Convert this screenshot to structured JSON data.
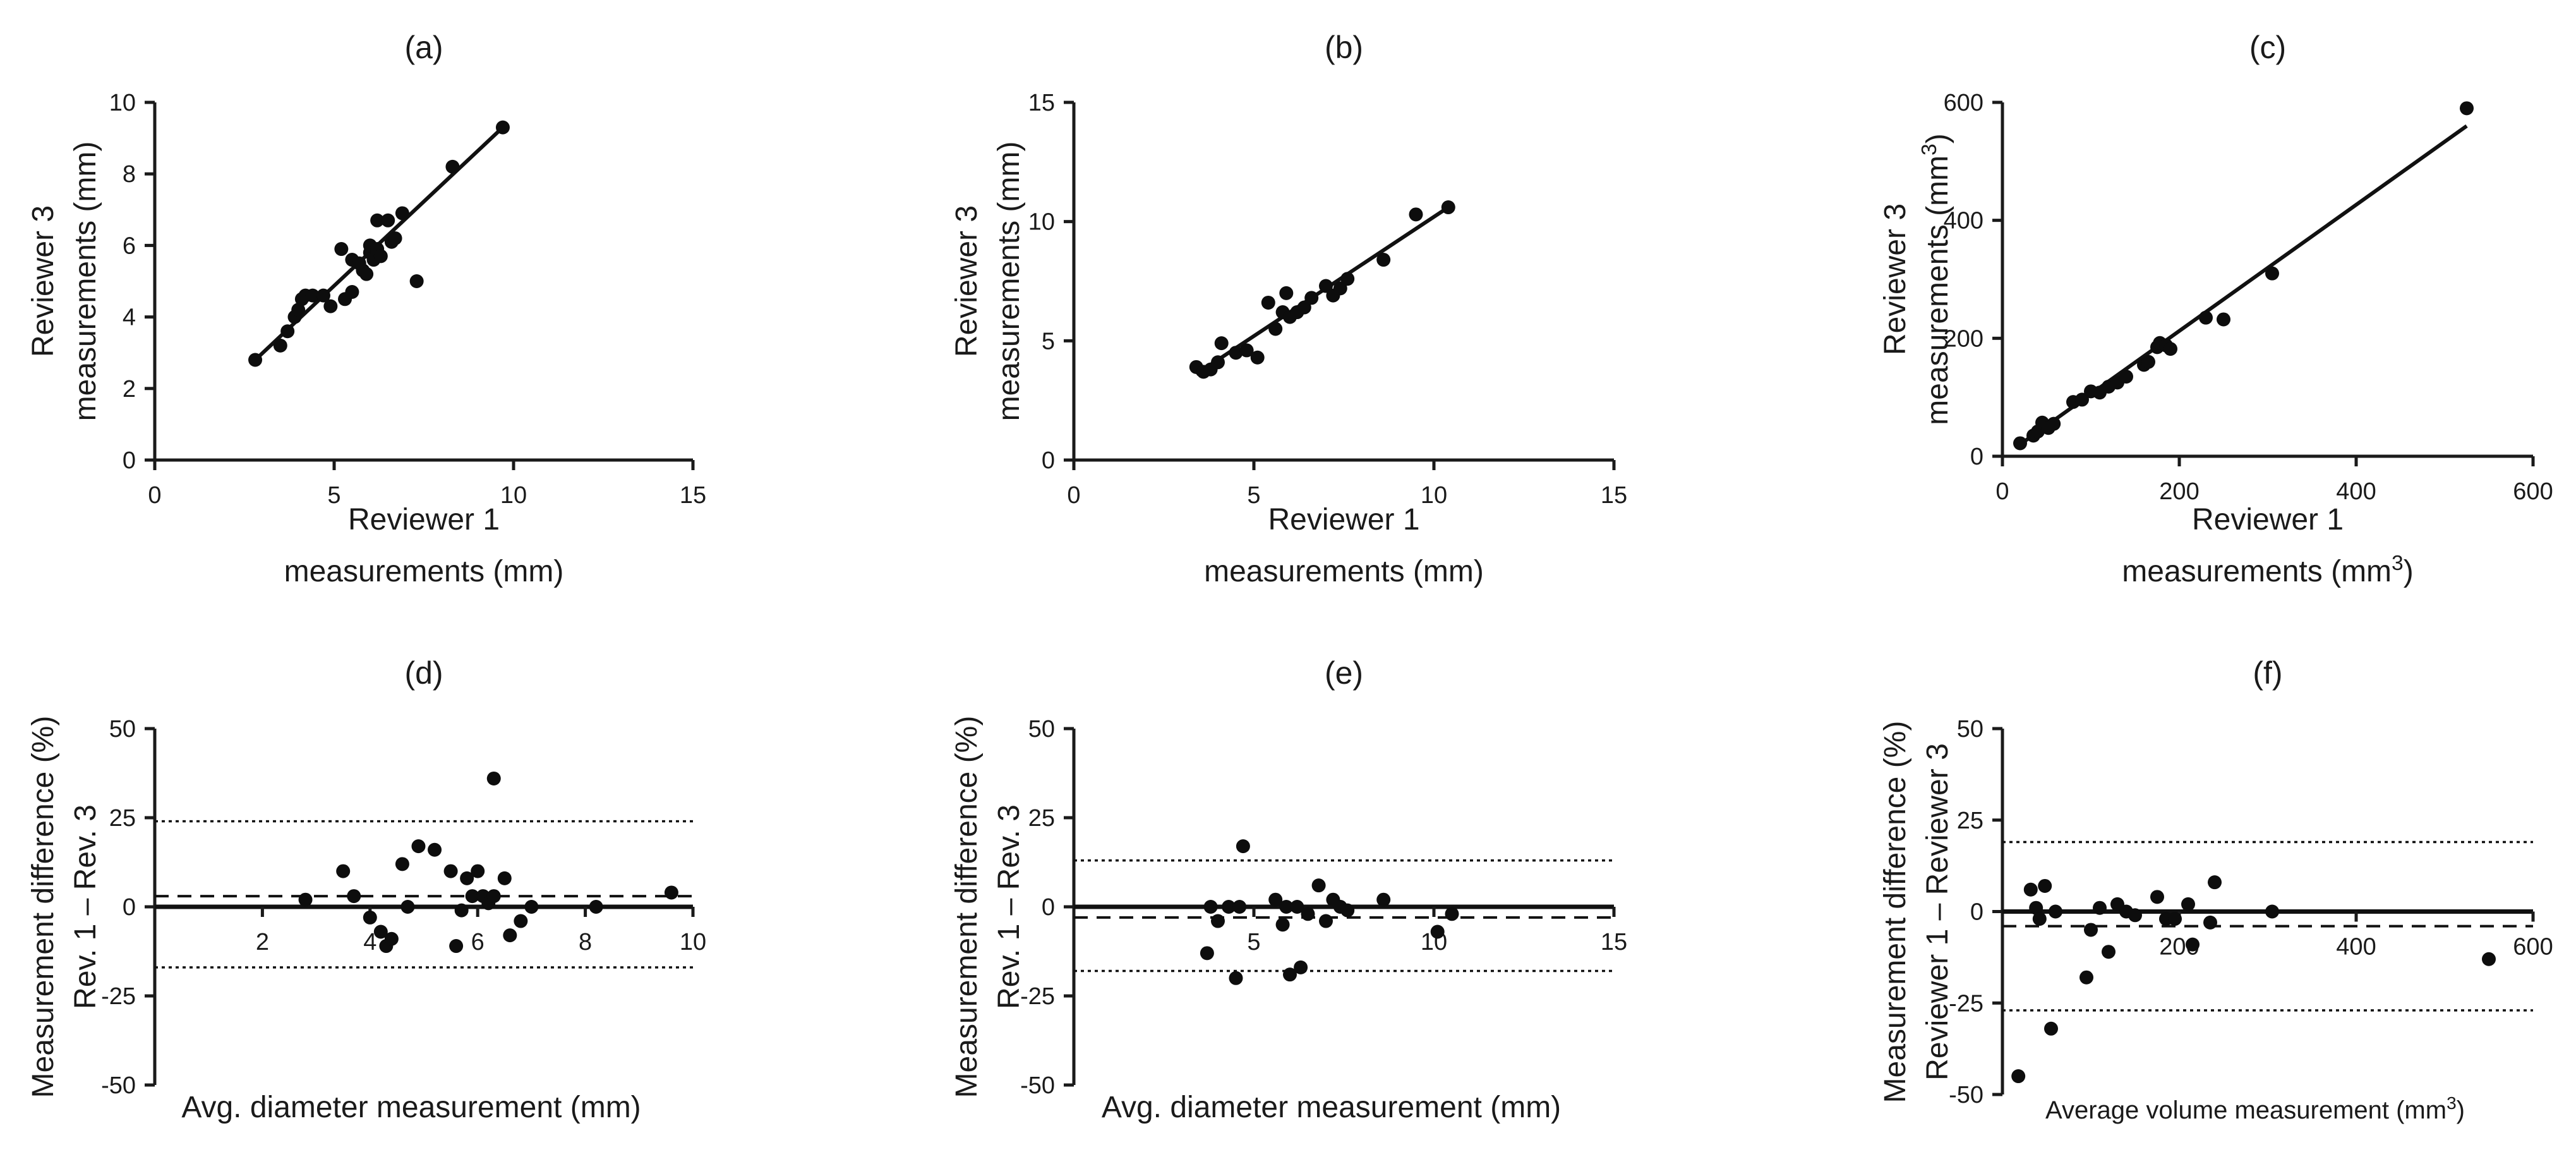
{
  "chart_data": [
    {
      "id": "a",
      "type": "scatter",
      "title": "(a)",
      "xlabel": [
        "Reviewer 1",
        "measurements (mm)"
      ],
      "ylabel": [
        "Reviewer 3",
        "measurements (mm)"
      ],
      "xlim": [
        0,
        15
      ],
      "ylim": [
        0,
        10
      ],
      "xticks": [
        0,
        5,
        10,
        15
      ],
      "yticks": [
        0,
        2,
        4,
        6,
        8,
        10
      ],
      "fit_line": [
        [
          2.8,
          2.8
        ],
        [
          9.7,
          9.3
        ]
      ],
      "points": [
        [
          2.8,
          2.8
        ],
        [
          3.5,
          3.2
        ],
        [
          3.7,
          3.6
        ],
        [
          3.9,
          4.0
        ],
        [
          4.0,
          4.2
        ],
        [
          4.1,
          4.5
        ],
        [
          4.2,
          4.6
        ],
        [
          4.4,
          4.6
        ],
        [
          4.7,
          4.6
        ],
        [
          4.9,
          4.3
        ],
        [
          5.2,
          5.9
        ],
        [
          5.3,
          4.5
        ],
        [
          5.5,
          4.7
        ],
        [
          5.5,
          5.6
        ],
        [
          5.7,
          5.5
        ],
        [
          5.8,
          5.3
        ],
        [
          5.9,
          5.2
        ],
        [
          6.0,
          5.8
        ],
        [
          6.0,
          6.0
        ],
        [
          6.1,
          5.6
        ],
        [
          6.2,
          5.9
        ],
        [
          6.2,
          6.7
        ],
        [
          6.3,
          5.7
        ],
        [
          6.5,
          6.7
        ],
        [
          6.6,
          6.1
        ],
        [
          6.7,
          6.2
        ],
        [
          6.9,
          6.9
        ],
        [
          7.3,
          5.0
        ],
        [
          8.3,
          8.2
        ],
        [
          9.7,
          9.3
        ]
      ]
    },
    {
      "id": "b",
      "type": "scatter",
      "title": "(b)",
      "xlabel": [
        "Reviewer 1",
        "measurements (mm)"
      ],
      "ylabel": [
        "Reviewer 3",
        "measurements (mm)"
      ],
      "xlim": [
        0,
        15
      ],
      "ylim": [
        0,
        15
      ],
      "xticks": [
        0,
        5,
        10,
        15
      ],
      "yticks": [
        0,
        5,
        10,
        15
      ],
      "fit_line": [
        [
          3.4,
          3.6
        ],
        [
          10.4,
          10.6
        ]
      ],
      "points": [
        [
          3.4,
          3.9
        ],
        [
          3.6,
          3.7
        ],
        [
          3.8,
          3.8
        ],
        [
          4.0,
          4.1
        ],
        [
          4.1,
          4.9
        ],
        [
          4.5,
          4.5
        ],
        [
          4.8,
          4.6
        ],
        [
          5.1,
          4.3
        ],
        [
          5.4,
          6.6
        ],
        [
          5.6,
          5.5
        ],
        [
          5.8,
          6.2
        ],
        [
          5.9,
          7.0
        ],
        [
          6.0,
          6.0
        ],
        [
          6.2,
          6.2
        ],
        [
          6.4,
          6.4
        ],
        [
          6.6,
          6.8
        ],
        [
          7.0,
          7.3
        ],
        [
          7.2,
          6.9
        ],
        [
          7.4,
          7.2
        ],
        [
          7.6,
          7.6
        ],
        [
          8.6,
          8.4
        ],
        [
          9.5,
          10.3
        ],
        [
          10.4,
          10.6
        ]
      ]
    },
    {
      "id": "c",
      "type": "scatter",
      "title": "(c)",
      "xlabel": [
        "Reviewer 1",
        "measurements (mm³)"
      ],
      "ylabel": [
        "Reviewer 3",
        "measurements (mm³)"
      ],
      "xlim": [
        0,
        600
      ],
      "ylim": [
        0,
        600
      ],
      "xticks": [
        0,
        200,
        400,
        600
      ],
      "yticks": [
        0,
        200,
        400,
        600
      ],
      "fit_line": [
        [
          20,
          20
        ],
        [
          525,
          560
        ]
      ],
      "points": [
        [
          20,
          22
        ],
        [
          35,
          35
        ],
        [
          40,
          42
        ],
        [
          45,
          57
        ],
        [
          52,
          48
        ],
        [
          58,
          55
        ],
        [
          80,
          92
        ],
        [
          90,
          96
        ],
        [
          100,
          110
        ],
        [
          110,
          108
        ],
        [
          120,
          118
        ],
        [
          130,
          125
        ],
        [
          140,
          135
        ],
        [
          160,
          155
        ],
        [
          165,
          160
        ],
        [
          175,
          185
        ],
        [
          178,
          192
        ],
        [
          185,
          188
        ],
        [
          190,
          182
        ],
        [
          230,
          235
        ],
        [
          250,
          232
        ],
        [
          305,
          310
        ],
        [
          525,
          590
        ]
      ]
    },
    {
      "id": "d",
      "type": "scatter",
      "title": "(d)",
      "xlabel": "Avg. diameter measurement (mm)",
      "ylabel": [
        "Measurement difference (%)",
        "Rev. 1 – Rev. 3"
      ],
      "xlim": [
        0,
        10
      ],
      "ylim": [
        -50,
        50
      ],
      "xticks": [
        2,
        4,
        6,
        8,
        10
      ],
      "yticks": [
        50,
        25,
        0,
        -25,
        -50
      ],
      "mean_diff": 3,
      "loa_upper": 24,
      "loa_lower": -17,
      "points": [
        [
          2.8,
          2
        ],
        [
          3.5,
          10
        ],
        [
          3.7,
          3
        ],
        [
          4.0,
          -3
        ],
        [
          4.2,
          -7
        ],
        [
          4.3,
          -11
        ],
        [
          4.4,
          -9
        ],
        [
          4.6,
          12
        ],
        [
          4.7,
          0
        ],
        [
          4.9,
          17
        ],
        [
          5.2,
          16
        ],
        [
          5.5,
          10
        ],
        [
          5.6,
          -11
        ],
        [
          5.7,
          -1
        ],
        [
          5.8,
          8
        ],
        [
          5.9,
          3
        ],
        [
          6.0,
          10
        ],
        [
          6.1,
          3
        ],
        [
          6.2,
          1
        ],
        [
          6.3,
          36
        ],
        [
          6.3,
          3
        ],
        [
          6.5,
          8
        ],
        [
          6.6,
          -8
        ],
        [
          6.8,
          -4
        ],
        [
          7.0,
          0
        ],
        [
          8.2,
          0
        ],
        [
          9.6,
          4
        ]
      ]
    },
    {
      "id": "e",
      "type": "scatter",
      "title": "(e)",
      "xlabel": "Avg. diameter measurement (mm)",
      "ylabel": [
        "Measurement difference (%)",
        "Rev. 1 – Rev. 3"
      ],
      "xlim": [
        0,
        15
      ],
      "ylim": [
        -50,
        50
      ],
      "xticks": [
        5,
        10,
        15
      ],
      "yticks": [
        50,
        25,
        0,
        -25,
        -50
      ],
      "mean_diff": -3,
      "loa_upper": 13,
      "loa_lower": -18,
      "points": [
        [
          3.7,
          -13
        ],
        [
          3.8,
          0
        ],
        [
          4.0,
          -4
        ],
        [
          4.3,
          0
        ],
        [
          4.5,
          -20
        ],
        [
          4.6,
          0
        ],
        [
          4.7,
          17
        ],
        [
          5.6,
          2
        ],
        [
          5.8,
          -5
        ],
        [
          5.9,
          0
        ],
        [
          6.0,
          -19
        ],
        [
          6.2,
          0
        ],
        [
          6.3,
          -17
        ],
        [
          6.5,
          -2
        ],
        [
          6.8,
          6
        ],
        [
          7.0,
          -4
        ],
        [
          7.2,
          2
        ],
        [
          7.4,
          0
        ],
        [
          7.6,
          -1
        ],
        [
          8.6,
          2
        ],
        [
          10.1,
          -7
        ],
        [
          10.5,
          -2
        ]
      ]
    },
    {
      "id": "f",
      "type": "scatter",
      "title": "(f)",
      "xlabel": "Average volume measurement (mm³)",
      "ylabel": [
        "Measurement difference (%)",
        "Reviewer 1 – Reviewer 3"
      ],
      "xlim": [
        0,
        600
      ],
      "ylim": [
        -50,
        50
      ],
      "xticks": [
        200,
        400,
        600
      ],
      "yticks": [
        50,
        25,
        0,
        -25,
        -50
      ],
      "mean_diff": -4,
      "loa_upper": 19,
      "loa_lower": -27,
      "points": [
        [
          18,
          -45
        ],
        [
          32,
          6
        ],
        [
          38,
          1
        ],
        [
          42,
          -2
        ],
        [
          48,
          7
        ],
        [
          55,
          -32
        ],
        [
          60,
          0
        ],
        [
          95,
          -18
        ],
        [
          100,
          -5
        ],
        [
          110,
          1
        ],
        [
          120,
          -11
        ],
        [
          130,
          2
        ],
        [
          140,
          0
        ],
        [
          150,
          -1
        ],
        [
          175,
          4
        ],
        [
          185,
          -2
        ],
        [
          195,
          -2
        ],
        [
          210,
          2
        ],
        [
          215,
          -9
        ],
        [
          235,
          -3
        ],
        [
          240,
          8
        ],
        [
          305,
          0
        ],
        [
          550,
          -13
        ]
      ]
    }
  ]
}
